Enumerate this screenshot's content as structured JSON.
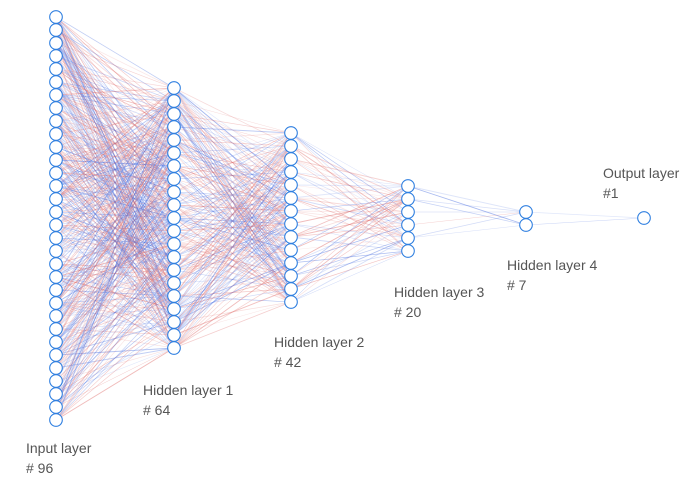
{
  "diagram": {
    "type": "neural-network",
    "colors": {
      "node_stroke": "#2f7fe0",
      "edge_positive": "#e0706e",
      "edge_negative": "#4a6fe0"
    },
    "layers": [
      {
        "name": "Input layer",
        "count_label": "# 96",
        "drawn_nodes": 32
      },
      {
        "name": "Hidden layer 1",
        "count_label": "# 64",
        "drawn_nodes": 21
      },
      {
        "name": "Hidden layer 2",
        "count_label": "# 42",
        "drawn_nodes": 14
      },
      {
        "name": "Hidden layer 3",
        "count_label": "# 20",
        "drawn_nodes": 6
      },
      {
        "name": "Hidden layer 4",
        "count_label": "# 7",
        "drawn_nodes": 2
      },
      {
        "name": "Output layer",
        "count_label": "#1",
        "drawn_nodes": 1
      }
    ]
  }
}
